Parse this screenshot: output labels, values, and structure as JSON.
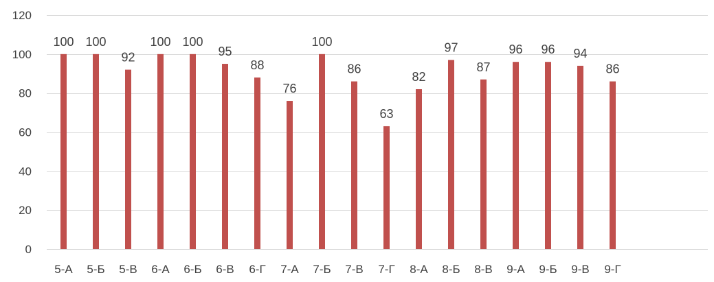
{
  "chart_data": {
    "type": "bar",
    "title": "",
    "xlabel": "",
    "ylabel": "",
    "categories": [
      "5-А",
      "5-Б",
      "5-В",
      "6-А",
      "6-Б",
      "6-В",
      "6-Г",
      "7-А",
      "7-Б",
      "7-В",
      "7-Г",
      "8-А",
      "8-Б",
      "8-В",
      "9-А",
      "9-Б",
      "9-В",
      "9-Г"
    ],
    "values": [
      100,
      100,
      92,
      100,
      100,
      95,
      88,
      76,
      100,
      86,
      63,
      82,
      97,
      87,
      96,
      96,
      94,
      86
    ],
    "ylim": [
      0,
      120
    ],
    "yticks": [
      0,
      20,
      40,
      60,
      80,
      100,
      120
    ],
    "grid": true,
    "legend": "none",
    "data_labels": true,
    "colors": {
      "bar": "#C0504D",
      "grid": "#D9D9D9",
      "axis": "#D9D9D9",
      "text": "#404040"
    }
  }
}
